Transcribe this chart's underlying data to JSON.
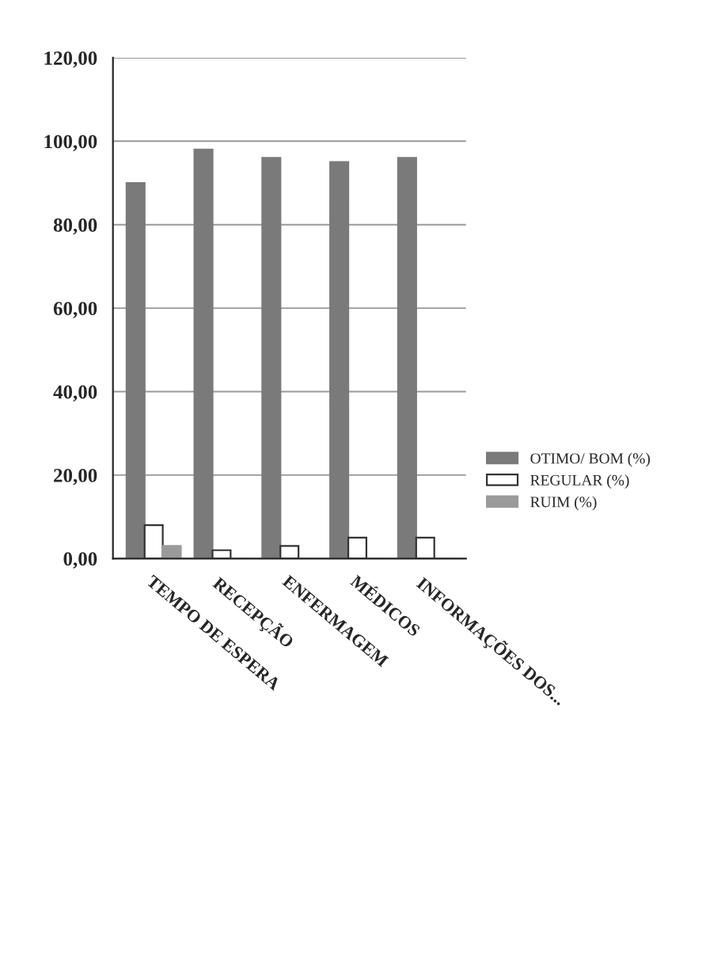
{
  "chart_data": {
    "type": "bar",
    "categories": [
      "TEMPO DE ESPERA",
      "RECEPÇÃO",
      "ENFERMAGEM",
      "MÉDICOS",
      "INFORMAÇÕES DOS..."
    ],
    "series": [
      {
        "name": "OTIMO/ BOM (%)",
        "color": "#7a7a7a",
        "values": [
          90,
          98,
          96,
          95,
          96
        ]
      },
      {
        "name": "REGULAR (%)",
        "color": "#ffffff",
        "values": [
          8,
          2,
          3,
          5,
          5
        ]
      },
      {
        "name": "RUIM (%)",
        "color": "#9a9a9a",
        "values": [
          3,
          0,
          0,
          0,
          0
        ]
      }
    ],
    "ylim": [
      0,
      120
    ],
    "yticks": [
      {
        "value": 0,
        "label": "0,00"
      },
      {
        "value": 20,
        "label": "20,00"
      },
      {
        "value": 40,
        "label": "40,00"
      },
      {
        "value": 60,
        "label": "60,00"
      },
      {
        "value": 80,
        "label": "80,00"
      },
      {
        "value": 100,
        "label": "100,00"
      },
      {
        "value": 120,
        "label": "120,00"
      }
    ],
    "grid": "y",
    "legend": "right"
  }
}
